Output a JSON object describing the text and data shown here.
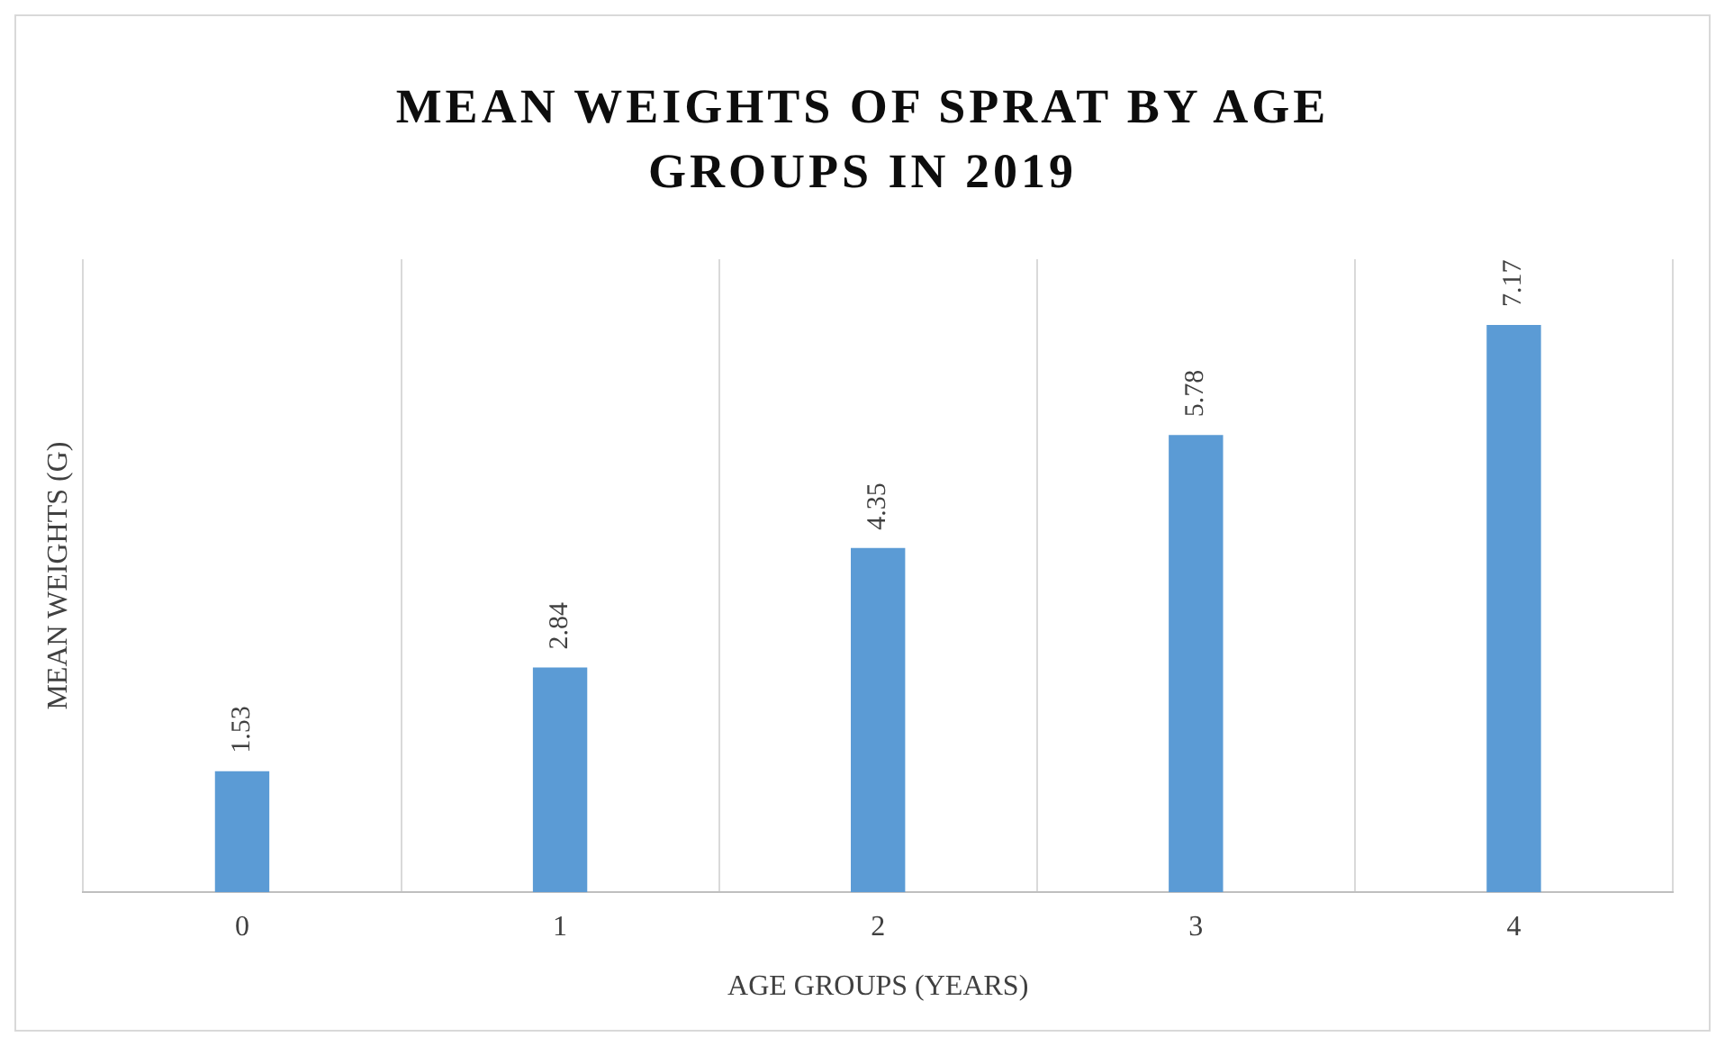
{
  "chart_data": {
    "type": "bar",
    "title": "MEAN WEIGHTS OF SPRAT BY AGE GROUPS IN 2019",
    "xlabel": "AGE GROUPS (YEARS)",
    "ylabel": "MEAN WEIGHTS (G)",
    "categories": [
      "0",
      "1",
      "2",
      "3",
      "4"
    ],
    "values": [
      1.53,
      2.84,
      4.35,
      5.78,
      7.17
    ],
    "color": "#5b9bd5",
    "data_labels": true,
    "grid": "x",
    "tick_labels": "x"
  }
}
